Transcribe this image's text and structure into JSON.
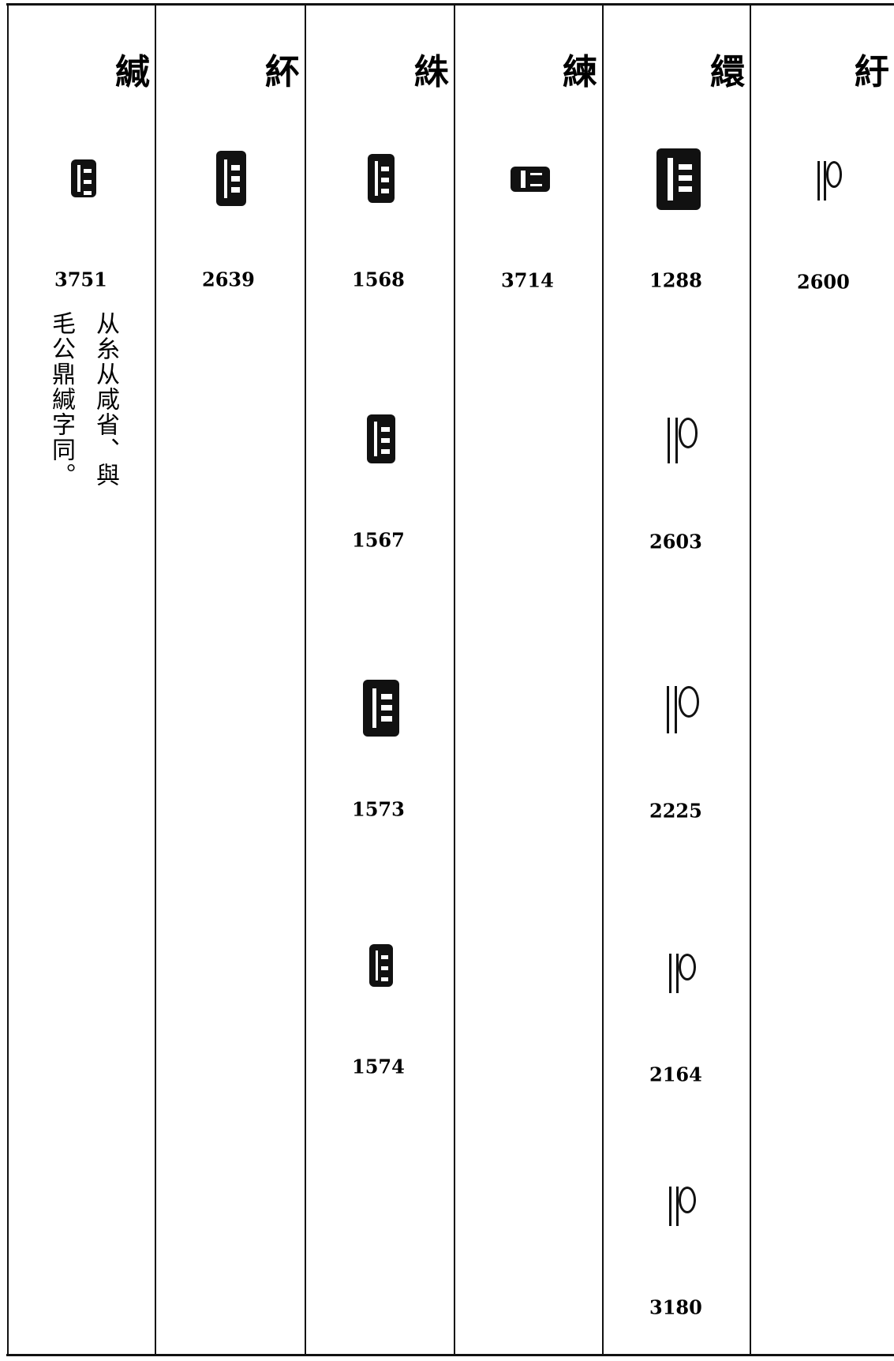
{
  "columns": [
    {
      "head": "緘",
      "numbers": [
        "3751"
      ],
      "note": [
        "从糸从咸省、與",
        "毛公鼎緘字同。"
      ]
    },
    {
      "head": "紑",
      "numbers": [
        "2639"
      ]
    },
    {
      "head": "絑",
      "numbers": [
        "1568",
        "1567",
        "1573",
        "1574"
      ]
    },
    {
      "head": "練",
      "numbers": [
        "3714"
      ]
    },
    {
      "head": "繯",
      "numbers": [
        "1288",
        "2603",
        "2225",
        "2164",
        "3180"
      ]
    },
    {
      "head": "紆",
      "numbers": [
        "2600"
      ]
    }
  ]
}
